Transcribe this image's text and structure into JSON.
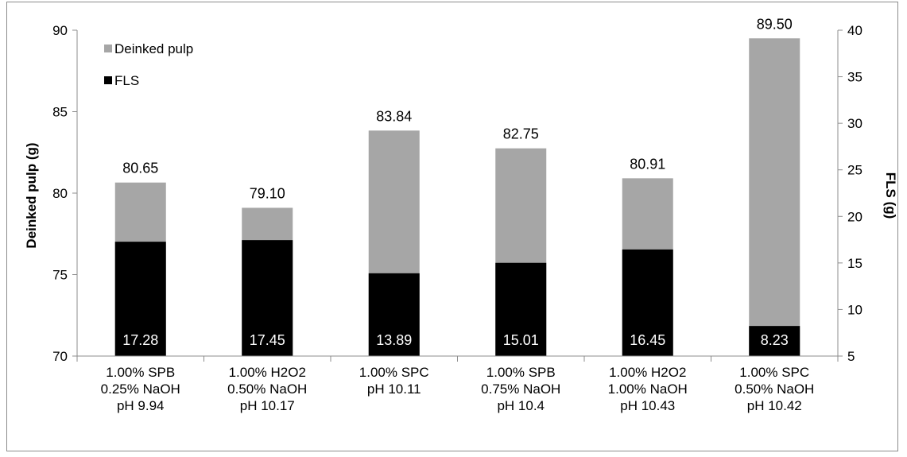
{
  "chart_data": {
    "type": "bar",
    "categories": [
      [
        "1.00%  SPB",
        "0.25% NaOH",
        "pH 9.94"
      ],
      [
        "1.00%  H2O2",
        "0.50% NaOH",
        "pH 10.17"
      ],
      [
        "1.00%  SPC",
        "pH 10.11"
      ],
      [
        "1.00% SPB",
        "0.75% NaOH",
        "pH 10.4"
      ],
      [
        "1.00% H2O2",
        "1.00% NaOH",
        "pH 10.43"
      ],
      [
        "1.00%  SPC",
        "0.50% NaOH",
        "pH 10.42"
      ]
    ],
    "series": [
      {
        "name": "Deinked pulp",
        "axis": "left",
        "color": "#a6a6a6",
        "values": [
          80.65,
          79.1,
          83.84,
          82.75,
          80.91,
          89.5
        ],
        "labels": [
          "80.65",
          "79.10",
          "83.84",
          "82.75",
          "80.91",
          "89.50"
        ]
      },
      {
        "name": "FLS",
        "axis": "right",
        "color": "#000000",
        "values": [
          17.28,
          17.45,
          13.89,
          15.01,
          16.45,
          8.23
        ],
        "labels": [
          "17.28",
          "17.45",
          "13.89",
          "15.01",
          "16.45",
          "8.23"
        ]
      }
    ],
    "ylabel": "Deinked pulp (g)",
    "y2label": "FLS (g)",
    "ylim": [
      70,
      90
    ],
    "y2lim": [
      5,
      40
    ],
    "yticks": [
      "70",
      "75",
      "80",
      "85",
      "90"
    ],
    "y2ticks": [
      "5",
      "10",
      "15",
      "20",
      "25",
      "30",
      "35",
      "40"
    ],
    "legend_position": "top-left",
    "grid": false
  }
}
